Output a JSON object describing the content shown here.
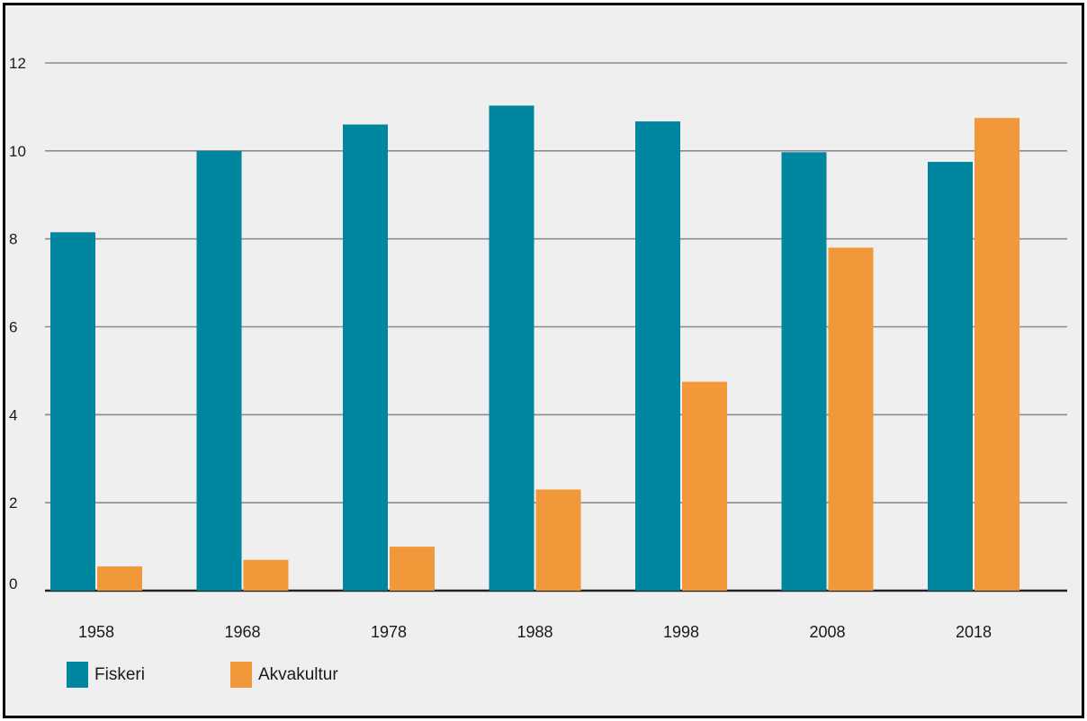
{
  "chart_data": {
    "type": "bar",
    "categories": [
      "1958",
      "1968",
      "1978",
      "1988",
      "1998",
      "2008",
      "2018"
    ],
    "series": [
      {
        "name": "Fiskeri",
        "color": "#00879f",
        "values": [
          8.15,
          10.0,
          10.6,
          11.03,
          10.67,
          9.97,
          9.75
        ]
      },
      {
        "name": "Akvakultur",
        "color": "#f0983a",
        "values": [
          0.55,
          0.7,
          1.0,
          2.3,
          4.75,
          7.8,
          10.75
        ]
      }
    ],
    "title": "",
    "xlabel": "",
    "ylabel": "",
    "ylim": [
      0,
      12
    ],
    "yticks": [
      0,
      2,
      4,
      6,
      8,
      10,
      12
    ],
    "grid": true,
    "legend_position": "bottom-left"
  }
}
